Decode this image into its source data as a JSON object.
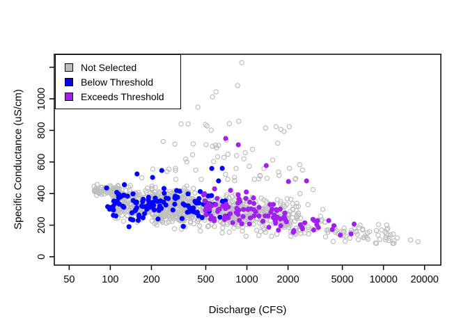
{
  "chart_data": {
    "type": "scatter",
    "title": "",
    "xlabel": "Discharge (CFS)",
    "ylabel": "Specific Conductance (uS/cm)",
    "x_scale": "log10",
    "grid": false,
    "x_ticks": [
      50,
      100,
      200,
      500,
      1000,
      2000,
      5000,
      10000,
      20000
    ],
    "x_tick_labels": [
      "50",
      "100",
      "200",
      "500",
      "1000",
      "2000",
      "5000",
      "10000",
      "20000"
    ],
    "y_ticks": [
      0,
      200,
      400,
      600,
      800,
      1000,
      1200
    ],
    "y_tick_labels": [
      "0",
      "200",
      "400",
      "600",
      "800",
      "1000",
      ""
    ],
    "xlim_log10": [
      1.59,
      4.42
    ],
    "ylim": [
      -53,
      1282
    ],
    "colors": {
      "not_selected": "#BEBEBE",
      "below_threshold": "#0000FF",
      "exceeds_threshold": "#A020F0",
      "axis": "#000000"
    },
    "marker": {
      "open_radius": 3.1,
      "open_stroke": 1.2,
      "filled_radius": 3.6
    },
    "prng_seed": 20240807,
    "legend": {
      "position": "topleft",
      "items": [
        {
          "label": "Not Selected",
          "color": "#BEBEBE",
          "marker": "square"
        },
        {
          "label": "Below Threshold",
          "color": "#0000FF",
          "marker": "square"
        },
        {
          "label": "Exceeds Threshold",
          "color": "#A020F0",
          "marker": "square"
        }
      ]
    },
    "series": [
      {
        "name": "Not Selected",
        "style": "open-circle",
        "color": "#BEBEBE",
        "clusters": [
          {
            "n": 70,
            "logx": [
              1.88,
              2.06
            ],
            "y": {
              "base": 422,
              "slope": 0,
              "sd": 16,
              "clamp": [
                385,
                460
              ]
            }
          },
          {
            "n": 430,
            "logx": [
              2.02,
              2.62
            ],
            "y": {
              "base": 340,
              "slope": -30,
              "sd": 52,
              "clamp": [
                165,
                540
              ]
            }
          },
          {
            "n": 270,
            "logx": [
              2.3,
              2.92
            ],
            "y": {
              "base": 320,
              "slope": -60,
              "sd": 58,
              "clamp": [
                150,
                560
              ]
            }
          },
          {
            "n": 210,
            "logx": [
              2.85,
              3.38
            ],
            "y": {
              "base": 280,
              "slope": -90,
              "sd": 55,
              "clamp": [
                130,
                520
              ]
            }
          },
          {
            "n": 75,
            "logx": [
              3.35,
              4.08
            ],
            "y": {
              "base": 200,
              "slope": -110,
              "sd": 35,
              "clamp": [
                85,
                360
              ]
            }
          },
          {
            "n": 42,
            "logx": [
              2.35,
              3.42
            ],
            "y": {
              "dist": "pow",
              "min": 490,
              "max": 900,
              "exp": 2.2
            }
          }
        ],
        "points": [
          [
            918,
            1229
          ],
          [
            855,
            1084
          ],
          [
            594,
            1044
          ],
          [
            560,
            1013
          ],
          [
            438,
            947
          ],
          [
            498,
            837
          ],
          [
            510,
            828
          ],
          [
            330,
            841
          ],
          [
            371,
            841
          ],
          [
            1774,
            806
          ],
          [
            2042,
            824
          ],
          [
            1369,
            815
          ],
          [
            1633,
            824
          ],
          [
            560,
            700
          ],
          [
            600,
            690
          ],
          [
            620,
            705
          ],
          [
            840,
            640
          ],
          [
            950,
            620
          ],
          [
            1100,
            680
          ],
          [
            300,
            560
          ],
          [
            260,
            540
          ],
          [
            205,
            555
          ],
          [
            170,
            500
          ],
          [
            2050,
            560
          ],
          [
            2450,
            400
          ],
          [
            3050,
            425
          ],
          [
            2800,
            330
          ],
          [
            3600,
            300
          ],
          [
            4280,
            97
          ],
          [
            7350,
            132
          ],
          [
            7900,
            159
          ],
          [
            9400,
            110
          ],
          [
            12600,
            119
          ],
          [
            15800,
            106
          ],
          [
            17900,
            95
          ]
        ]
      },
      {
        "name": "Below Threshold",
        "style": "filled-circle",
        "color": "#0000FF",
        "clusters": [
          {
            "n": 100,
            "logx": [
              1.98,
              2.72
            ],
            "y": {
              "base": 330,
              "slope": -20,
              "sd": 50,
              "clamp": [
                190,
                480
              ]
            }
          },
          {
            "n": 16,
            "logx": [
              2.55,
              2.86
            ],
            "y": {
              "base": 330,
              "slope": -40,
              "sd": 45,
              "clamp": [
                200,
                460
              ]
            }
          }
        ],
        "points": [
          [
            94,
            435
          ],
          [
            157,
            524
          ],
          [
            238,
            546
          ],
          [
            553,
            559
          ],
          [
            204,
            502
          ],
          [
            137,
            190
          ],
          [
            160,
            230
          ],
          [
            620,
            480
          ],
          [
            660,
            560
          ]
        ]
      },
      {
        "name": "Exceeds Threshold",
        "style": "filled-circle",
        "color": "#A020F0",
        "clusters": [
          {
            "n": 78,
            "logx": [
              2.68,
              3.3
            ],
            "y": {
              "base": 300,
              "slope": -60,
              "sd": 45,
              "clamp": [
                165,
                410
              ]
            }
          },
          {
            "n": 16,
            "logx": [
              3.25,
              3.72
            ],
            "y": {
              "base": 230,
              "slope": -80,
              "sd": 30,
              "clamp": [
                140,
                320
              ]
            }
          }
        ],
        "points": [
          [
            700,
            749
          ],
          [
            865,
            709
          ],
          [
            1385,
            577
          ],
          [
            2016,
            476
          ],
          [
            2735,
            480
          ],
          [
            3340,
            185
          ],
          [
            4220,
            172
          ],
          [
            4830,
            137
          ],
          [
            5790,
            145
          ],
          [
            6100,
            207
          ],
          [
            580,
            430
          ],
          [
            760,
            420
          ]
        ]
      }
    ]
  }
}
